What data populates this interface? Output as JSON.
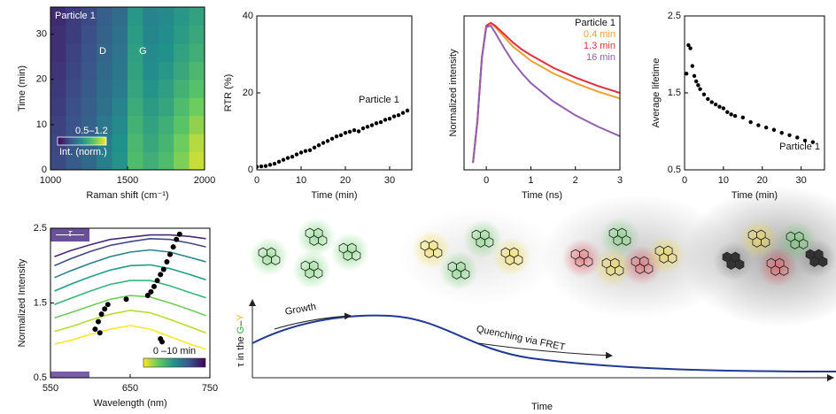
{
  "chart_data": [
    {
      "type": "heatmap",
      "x_label": "Raman shift (cm⁻¹)",
      "y_label": "Time (min)",
      "xlim": [
        1000,
        2000
      ],
      "xticks": [
        1000,
        1500,
        2000
      ],
      "ylim": [
        0,
        36
      ],
      "yticks": [
        0,
        10,
        20,
        30
      ],
      "x": [
        1050,
        1150,
        1250,
        1350,
        1450,
        1550,
        1650,
        1750,
        1850,
        1950
      ],
      "y": [
        2,
        6,
        10,
        14,
        18,
        22,
        26,
        30,
        34
      ],
      "values": [
        [
          0.66,
          0.7,
          0.74,
          0.8,
          0.86,
          0.98,
          0.94,
          0.98,
          1.06,
          1.14
        ],
        [
          0.65,
          0.69,
          0.73,
          0.79,
          0.85,
          0.97,
          0.92,
          0.96,
          1.04,
          1.12
        ],
        [
          0.64,
          0.68,
          0.72,
          0.78,
          0.83,
          0.95,
          0.9,
          0.94,
          1.01,
          1.08
        ],
        [
          0.63,
          0.67,
          0.71,
          0.76,
          0.81,
          0.93,
          0.88,
          0.91,
          0.98,
          1.04
        ],
        [
          0.62,
          0.66,
          0.7,
          0.75,
          0.79,
          0.91,
          0.86,
          0.89,
          0.95,
          1.0
        ],
        [
          0.61,
          0.65,
          0.69,
          0.74,
          0.78,
          0.9,
          0.84,
          0.87,
          0.92,
          0.97
        ],
        [
          0.6,
          0.64,
          0.68,
          0.73,
          0.77,
          0.89,
          0.83,
          0.85,
          0.9,
          0.94
        ],
        [
          0.6,
          0.63,
          0.67,
          0.72,
          0.76,
          0.88,
          0.82,
          0.84,
          0.88,
          0.92
        ],
        [
          0.59,
          0.63,
          0.66,
          0.71,
          0.75,
          0.87,
          0.81,
          0.83,
          0.87,
          0.9
        ]
      ],
      "clim": [
        0.5,
        1.2
      ],
      "colormap": "viridis",
      "annotations": [
        "Particle 1",
        "D",
        "G"
      ],
      "colorbar_range_label": "0.5–1.2",
      "colorbar_label": "Int. (norm.)"
    },
    {
      "type": "scatter",
      "x_label": "Time (min)",
      "y_label": "RTR (%)",
      "xlim": [
        0,
        35
      ],
      "xticks": [
        0,
        10,
        20,
        30
      ],
      "ylim": [
        0,
        40
      ],
      "yticks": [
        0,
        20,
        40
      ],
      "color": "#000000",
      "annotations": [
        "Particle 1"
      ],
      "x": [
        0,
        1,
        2,
        3,
        4,
        5,
        6,
        7,
        8,
        9,
        10,
        11,
        12,
        13,
        14,
        15,
        16,
        17,
        18,
        19,
        20,
        21,
        22,
        23,
        24,
        25,
        26,
        27,
        28,
        29,
        30,
        31,
        32,
        33,
        34
      ],
      "values": [
        0.8,
        0.9,
        1.0,
        1.3,
        1.6,
        2.1,
        2.6,
        3.1,
        3.4,
        4.0,
        4.5,
        4.9,
        5.1,
        5.8,
        6.4,
        7.0,
        7.5,
        8.1,
        8.7,
        9.0,
        9.6,
        9.9,
        10.3,
        10.0,
        10.8,
        11.2,
        11.6,
        12.1,
        12.4,
        13.0,
        13.3,
        13.9,
        14.2,
        14.8,
        15.4
      ]
    },
    {
      "type": "line",
      "x_label": "Time (ns)",
      "y_label": "Normalized intensity",
      "xlim": [
        -0.5,
        3
      ],
      "xticks": [
        0,
        1,
        2,
        3
      ],
      "ylim": [
        -0.05,
        1.05
      ],
      "legend_title": "Particle 1",
      "x": [
        -0.3,
        -0.2,
        -0.1,
        0,
        0.1,
        0.2,
        0.4,
        0.6,
        0.8,
        1.0,
        1.5,
        2.0,
        2.5,
        3.0
      ],
      "series": [
        {
          "name": "0.4 min",
          "color": "#f0a030",
          "values": [
            0,
            0.3,
            0.75,
            0.98,
            1.0,
            0.97,
            0.9,
            0.83,
            0.78,
            0.73,
            0.64,
            0.57,
            0.51,
            0.46
          ]
        },
        {
          "name": "1.3 min",
          "color": "#e03040",
          "values": [
            0,
            0.3,
            0.75,
            0.98,
            1.0,
            0.98,
            0.92,
            0.86,
            0.81,
            0.77,
            0.68,
            0.61,
            0.55,
            0.5
          ]
        },
        {
          "name": "16 min",
          "color": "#9060b0",
          "values": [
            0,
            0.3,
            0.75,
            0.97,
            0.98,
            0.93,
            0.82,
            0.72,
            0.64,
            0.57,
            0.44,
            0.34,
            0.26,
            0.19
          ]
        }
      ]
    },
    {
      "type": "scatter",
      "x_label": "Time (min)",
      "y_label": "Average lifetime",
      "xlim": [
        0,
        36
      ],
      "xticks": [
        0,
        10,
        20,
        30
      ],
      "ylim": [
        0.5,
        2.5
      ],
      "yticks": [
        0.5,
        1.5,
        2.5
      ],
      "color": "#000000",
      "annotations": [
        "Particle 1"
      ],
      "x": [
        0.5,
        1,
        1.5,
        2,
        2.5,
        3,
        3.5,
        4,
        5,
        6,
        7,
        8,
        9,
        10,
        11,
        12,
        13,
        15,
        17,
        19,
        21,
        23,
        25,
        27,
        29,
        31,
        33
      ],
      "values": [
        1.75,
        2.12,
        2.08,
        1.85,
        1.72,
        1.65,
        1.6,
        1.55,
        1.48,
        1.42,
        1.38,
        1.35,
        1.32,
        1.3,
        1.25,
        1.22,
        1.2,
        1.18,
        1.12,
        1.08,
        1.05,
        1.02,
        0.98,
        0.95,
        0.92,
        0.88,
        0.86
      ]
    },
    {
      "type": "line",
      "x_label": "Wavelength (nm)",
      "y_label": "Normalized Intensity",
      "xlim": [
        550,
        750
      ],
      "xticks": [
        550,
        650,
        750
      ],
      "ylim": [
        0.5,
        2.5
      ],
      "yticks": [
        0.5,
        1.5,
        2.5
      ],
      "legend_label": "τ",
      "colorbar_label": "0 –10 min",
      "x": [
        555,
        575,
        600,
        625,
        650,
        675,
        700,
        725,
        745
      ],
      "series": [
        {
          "color": "#fde725",
          "values": [
            0.95,
            1.0,
            1.08,
            1.15,
            1.2,
            1.15,
            1.05,
            0.95,
            0.88
          ]
        },
        {
          "color": "#b5de2b",
          "values": [
            1.12,
            1.18,
            1.27,
            1.35,
            1.4,
            1.37,
            1.28,
            1.18,
            1.1
          ]
        },
        {
          "color": "#6ece58",
          "values": [
            1.3,
            1.37,
            1.46,
            1.55,
            1.6,
            1.58,
            1.5,
            1.41,
            1.33
          ]
        },
        {
          "color": "#35b779",
          "values": [
            1.48,
            1.56,
            1.66,
            1.75,
            1.8,
            1.8,
            1.73,
            1.64,
            1.57
          ]
        },
        {
          "color": "#1f9e89",
          "values": [
            1.66,
            1.75,
            1.85,
            1.94,
            2.0,
            2.01,
            1.96,
            1.88,
            1.81
          ]
        },
        {
          "color": "#26828e",
          "values": [
            1.84,
            1.93,
            2.03,
            2.12,
            2.18,
            2.21,
            2.18,
            2.11,
            2.05
          ]
        },
        {
          "color": "#3e4989",
          "values": [
            2.0,
            2.09,
            2.19,
            2.27,
            2.32,
            2.36,
            2.35,
            2.3,
            2.25
          ]
        },
        {
          "color": "#482878",
          "values": [
            2.12,
            2.2,
            2.28,
            2.35,
            2.38,
            2.41,
            2.41,
            2.39,
            2.36
          ]
        }
      ],
      "points": {
        "color": "#000000",
        "x": [
          606,
          610,
          614,
          618,
          622,
          645,
          672,
          676,
          680,
          684,
          688,
          692,
          696,
          700,
          704,
          708,
          712,
          612,
          688,
          690
        ],
        "values": [
          1.15,
          1.25,
          1.35,
          1.42,
          1.48,
          1.55,
          1.6,
          1.65,
          1.72,
          1.8,
          1.88,
          1.95,
          2.05,
          2.15,
          2.25,
          2.35,
          2.42,
          1.1,
          1.02,
          0.98
        ]
      }
    }
  ],
  "schematic": {
    "y_label": [
      "τ in the ",
      "G",
      "–",
      "Y"
    ],
    "x_label": "Time",
    "annotations": [
      "Growth",
      "Quenching via FRET"
    ]
  }
}
